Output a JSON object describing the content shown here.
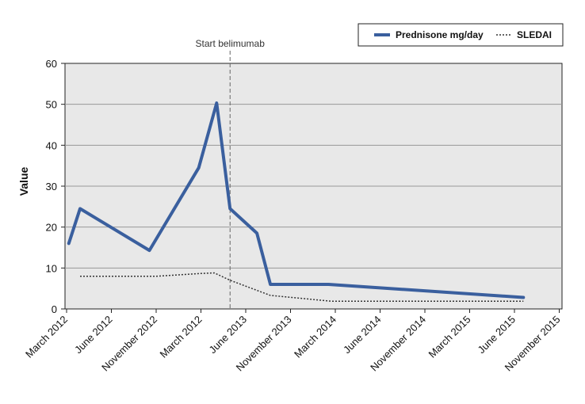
{
  "chart_data": {
    "type": "line",
    "title": "",
    "xlabel": "",
    "ylabel": "Value",
    "ylim": [
      0,
      60
    ],
    "yticks": [
      0,
      10,
      20,
      30,
      40,
      50,
      60
    ],
    "xlim": [
      0,
      10.2
    ],
    "x_tick_labels": [
      {
        "x": 0,
        "label": "March 2012"
      },
      {
        "x": 1,
        "label": "June 2012"
      },
      {
        "x": 2,
        "label": "November 2012"
      },
      {
        "x": 3,
        "label": "March 2012"
      },
      {
        "x": 4,
        "label": "June 2013"
      },
      {
        "x": 5,
        "label": "November 2013"
      },
      {
        "x": 6,
        "label": "March 2014"
      },
      {
        "x": 7,
        "label": "June 2014"
      },
      {
        "x": 8,
        "label": "November 2014"
      },
      {
        "x": 9,
        "label": "March 2015"
      },
      {
        "x": 10,
        "label": "June 2015"
      },
      {
        "x": 11,
        "label": "November 2015"
      }
    ],
    "grid": "horizontal",
    "background": "#e8e8e8",
    "legend_position": "top-right",
    "series": [
      {
        "name": "Prednisone mg/day",
        "color": "#3a5f9e",
        "style": "solid",
        "points": [
          [
            0.05,
            16
          ],
          [
            0.3,
            24.5
          ],
          [
            1.85,
            14.3
          ],
          [
            2.95,
            34.5
          ],
          [
            3.35,
            50.3
          ],
          [
            3.65,
            24.5
          ],
          [
            4.25,
            18.5
          ],
          [
            4.55,
            6
          ],
          [
            5.85,
            6
          ],
          [
            10.2,
            2.8
          ]
        ]
      },
      {
        "name": "SLEDAI",
        "color": "#333333",
        "style": "dotted",
        "points": [
          [
            0.3,
            8
          ],
          [
            2.0,
            8
          ],
          [
            3.05,
            8.7
          ],
          [
            3.3,
            8.8
          ],
          [
            3.65,
            7
          ],
          [
            4.55,
            3.3
          ],
          [
            5.9,
            1.9
          ],
          [
            10.2,
            1.9
          ]
        ]
      }
    ],
    "annotations": [
      {
        "x": 3.65,
        "label": "Start belimumab",
        "style": "dashed-vertical"
      }
    ]
  }
}
